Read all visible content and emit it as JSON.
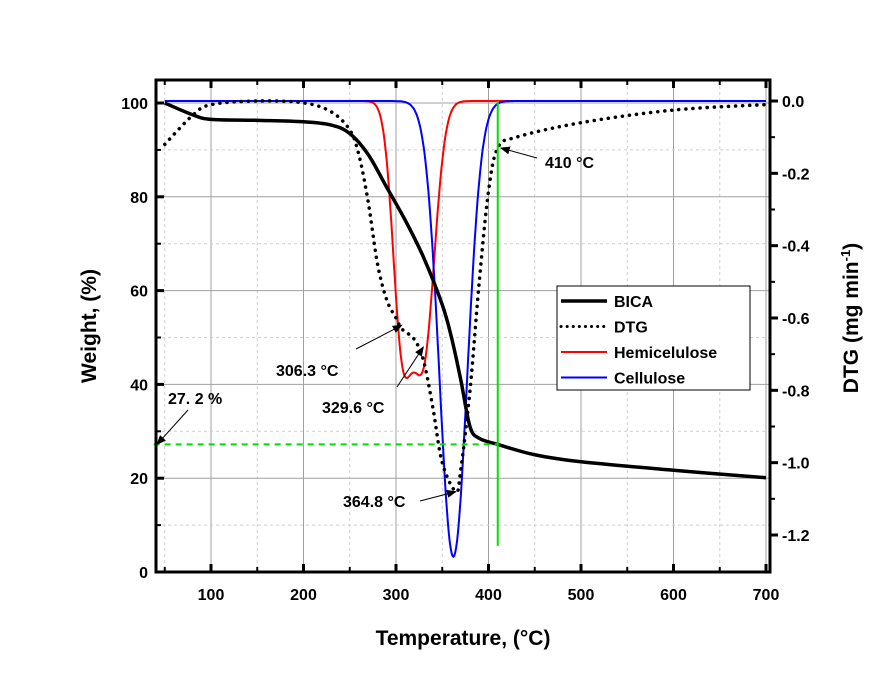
{
  "chart_data": {
    "type": "line",
    "title": "",
    "xlabel": "Temperature, (°C)",
    "ylabel": "Weight, (%)",
    "y2label": "DTG (mg min",
    "y2label_sup": "-1",
    "y2label_end": ")",
    "xlim": [
      38,
      700
    ],
    "ylim": [
      0,
      104
    ],
    "y2lim": [
      -1.3,
      0.05
    ],
    "xticks": [
      100,
      200,
      300,
      400,
      500,
      600,
      700
    ],
    "yticks": [
      0,
      20,
      40,
      60,
      80,
      100
    ],
    "y2ticks": [
      0.0,
      -0.2,
      -0.4,
      -0.6,
      -0.8,
      -1.0,
      -1.2
    ],
    "y2tick_labels": [
      "0.0",
      "-0.2",
      "-0.4",
      "-0.6",
      "-0.8",
      "-1.0",
      "-1.2"
    ],
    "grid": true,
    "legend_position": "center-right",
    "series": [
      {
        "name": "BICA",
        "axis": "left",
        "color": "#000000",
        "style": "solid",
        "x": [
          50,
          80,
          100,
          150,
          200,
          230,
          250,
          270,
          290,
          310,
          330,
          350,
          360,
          370,
          380,
          390,
          410,
          450,
          500,
          600,
          700
        ],
        "y": [
          100,
          97.5,
          96.5,
          96.3,
          96,
          95.3,
          93.5,
          89,
          82,
          75,
          67,
          57,
          50,
          41,
          31,
          28.5,
          27.2,
          25,
          23.5,
          21.7,
          20.1
        ]
      },
      {
        "name": "DTG",
        "axis": "right",
        "color": "#000000",
        "style": "dotted",
        "x": [
          50,
          80,
          100,
          150,
          200,
          230,
          250,
          260,
          270,
          280,
          290,
          300,
          306.3,
          320,
          330,
          340,
          350,
          364.8,
          370,
          380,
          390,
          400,
          410,
          430,
          500,
          600,
          700
        ],
        "y": [
          -0.12,
          -0.04,
          -0.01,
          0,
          -0.005,
          -0.03,
          -0.08,
          -0.15,
          -0.28,
          -0.45,
          -0.55,
          -0.6,
          -0.63,
          -0.66,
          -0.72,
          -0.85,
          -1.0,
          -1.08,
          -1.02,
          -0.8,
          -0.5,
          -0.25,
          -0.13,
          -0.1,
          -0.06,
          -0.025,
          -0.01
        ]
      },
      {
        "name": "Hemicelulose",
        "axis": "right",
        "color": "#ff0000",
        "style": "solid",
        "peaks": [
          {
            "center": 306.3,
            "depth": -0.62,
            "width": 10
          },
          {
            "center": 329.6,
            "depth": -0.7,
            "width": 12
          }
        ],
        "x_range": [
          50,
          700
        ]
      },
      {
        "name": "Cellulose",
        "axis": "right",
        "color": "#0000ff",
        "style": "solid",
        "peaks": [
          {
            "center": 362,
            "depth": -1.26,
            "width": 15
          }
        ],
        "x_range": [
          50,
          700
        ]
      }
    ],
    "reference_lines": [
      {
        "name": "residue-line",
        "color": "#00e000",
        "style": "dashed",
        "axis": "left",
        "y": 27.2,
        "x_range": [
          38,
          410
        ]
      },
      {
        "name": "end-temperature-line",
        "color": "#00e000",
        "style": "solid",
        "x": 410,
        "y_range_right": [
          0.0,
          -1.23
        ]
      }
    ],
    "annotations": [
      {
        "text": "410 °C",
        "target_x": 410,
        "target_y2": -0.13
      },
      {
        "text": "306.3 °C",
        "target_x": 306.3,
        "target_y2": -0.62
      },
      {
        "text": "329.6 °C",
        "target_x": 329.6,
        "target_y2": -0.68
      },
      {
        "text": "364.8 °C",
        "target_x": 364.8,
        "target_y2": -1.08
      },
      {
        "text": "27. 2 %",
        "target_x": 38,
        "target_y": 27.2
      }
    ]
  }
}
